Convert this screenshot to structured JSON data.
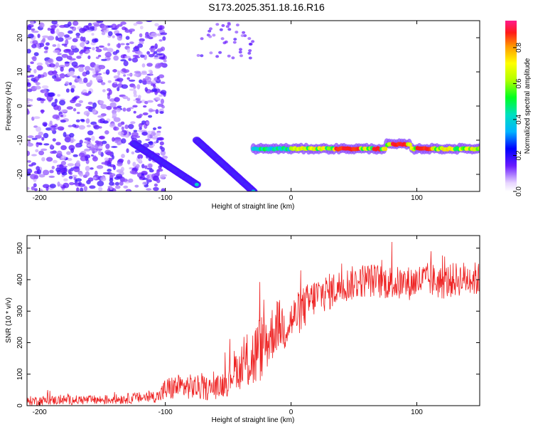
{
  "title": "S173.2025.351.18.16.R16",
  "colors": {
    "snr_line": "#ee2222",
    "axis": "#000000",
    "background": "#ffffff"
  },
  "chart_data": [
    {
      "type": "heatmap",
      "name": "spectrogram",
      "xlabel": "Height of straight line (km)",
      "ylabel": "Frequency (Hz)",
      "xlim": [
        -210,
        150
      ],
      "ylim": [
        -25,
        25
      ],
      "xticks": [
        -200,
        -100,
        0,
        100
      ],
      "yticks": [
        -20,
        -10,
        0,
        10,
        20
      ],
      "colorbar": {
        "label": "Normalized spectral amplitude",
        "range": [
          0,
          0.95
        ],
        "ticks": [
          0.0,
          0.2,
          0.4,
          0.6,
          0.8
        ],
        "tick_labels": [
          "0.0",
          "0.2",
          "0.4",
          "0.6",
          "0.8"
        ]
      },
      "features": [
        {
          "name": "stable tone",
          "x_range": [
            -30,
            150
          ],
          "frequency_hz": -12.5,
          "peak_amplitude": 0.95
        },
        {
          "name": "descending trace A",
          "x_range": [
            -125,
            -75
          ],
          "frequency_hz_start": -11,
          "frequency_hz_end": -23
        },
        {
          "name": "descending trace B",
          "x_range": [
            -75,
            -30
          ],
          "frequency_hz_start": -10,
          "frequency_hz_end": -25
        },
        {
          "name": "broadband noise",
          "x_range": [
            -210,
            -110
          ],
          "frequency_hz_range": [
            -25,
            25
          ],
          "typical_amplitude": 0.1
        }
      ]
    },
    {
      "type": "line",
      "name": "snr",
      "xlabel": "Height of straight line (km)",
      "ylabel": "SNR (10 * v/v)",
      "xlim": [
        -210,
        150
      ],
      "ylim": [
        0,
        540
      ],
      "xticks": [
        -200,
        -100,
        0,
        100
      ],
      "yticks": [
        0,
        100,
        200,
        300,
        400,
        500
      ],
      "series": [
        {
          "name": "SNR",
          "x": [
            -210,
            -180,
            -150,
            -120,
            -105,
            -100,
            -90,
            -80,
            -70,
            -60,
            -50,
            -45,
            -40,
            -35,
            -30,
            -25,
            -20,
            -15,
            -10,
            -5,
            0,
            10,
            20,
            30,
            40,
            50,
            60,
            70,
            80,
            90,
            100,
            110,
            120,
            130,
            140,
            150
          ],
          "mean": [
            15,
            18,
            18,
            25,
            30,
            50,
            60,
            60,
            55,
            55,
            80,
            120,
            110,
            140,
            150,
            180,
            200,
            230,
            260,
            250,
            270,
            310,
            350,
            360,
            380,
            390,
            400,
            395,
            390,
            385,
            395,
            400,
            390,
            400,
            405,
            400
          ],
          "spread": [
            15,
            15,
            15,
            18,
            20,
            40,
            40,
            40,
            40,
            35,
            50,
            60,
            60,
            90,
            110,
            110,
            100,
            90,
            80,
            80,
            70,
            70,
            60,
            60,
            55,
            55,
            55,
            55,
            55,
            55,
            55,
            55,
            55,
            55,
            55,
            55
          ]
        }
      ]
    }
  ]
}
